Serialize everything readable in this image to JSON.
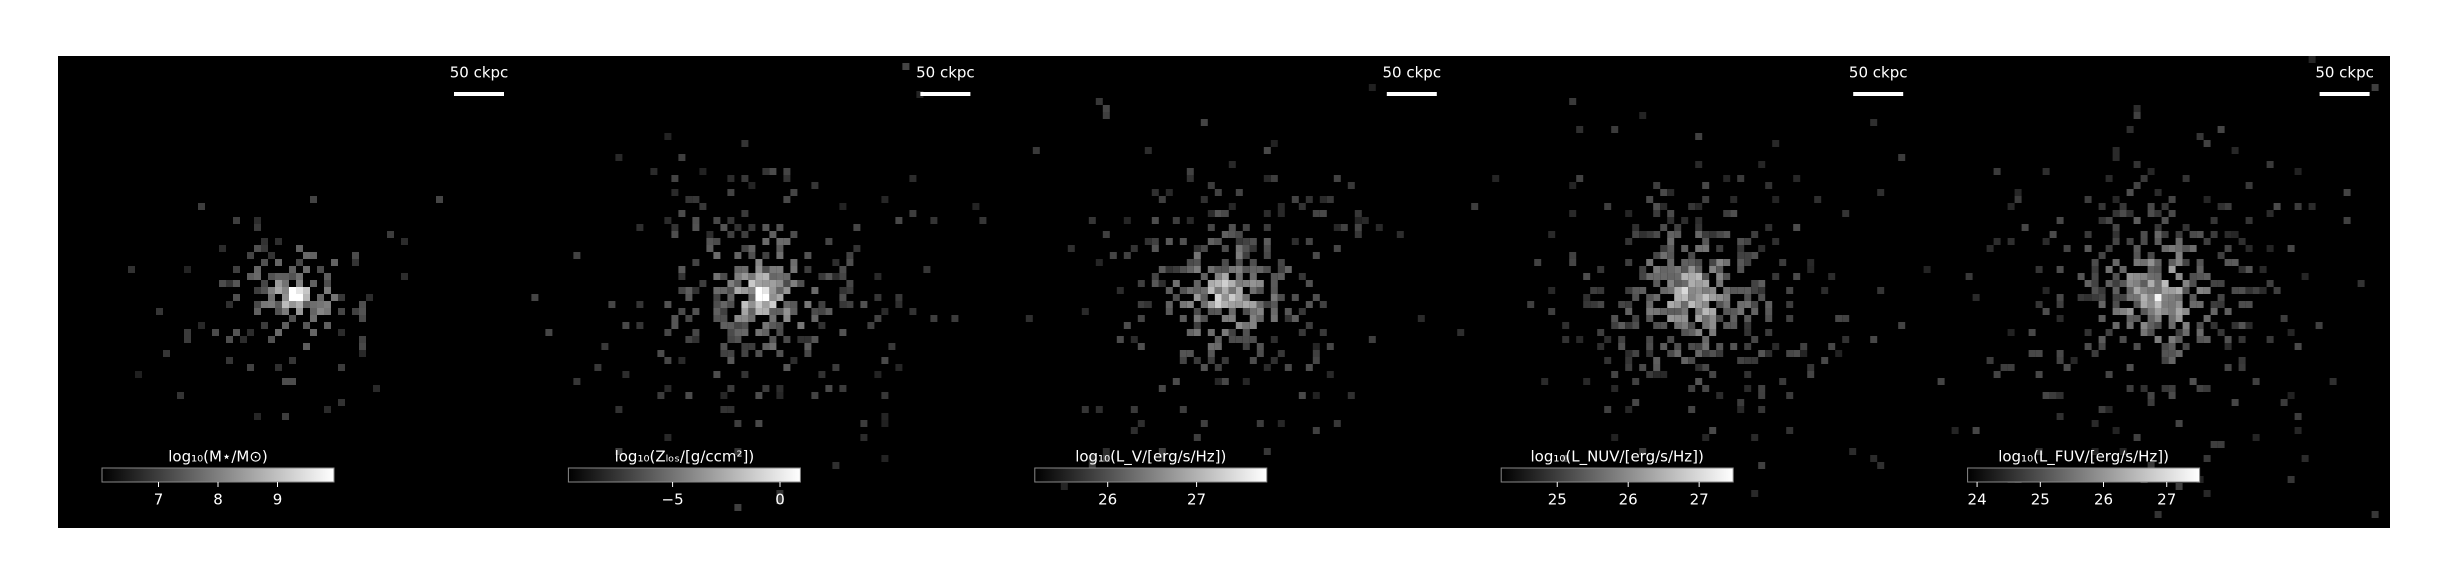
{
  "chart_data": [
    {
      "type": "image",
      "scalebar": "50 ckpc",
      "colorbar_label": "log₁₀(M⋆/M⊙)",
      "clim": [
        6.05,
        9.95
      ],
      "cticks": [
        7,
        8,
        9
      ],
      "cmap": "gray"
    },
    {
      "type": "image",
      "scalebar": "50 ckpc",
      "colorbar_label": "log₁₀(Zₗₒₛ/[g/ccm²])",
      "clim": [
        -9.85,
        0.95
      ],
      "cticks": [
        {
          "value": -5,
          "label": "−5"
        },
        0
      ],
      "cmap": "gray"
    },
    {
      "type": "image",
      "scalebar": "50 ckpc",
      "colorbar_label": "log₁₀(L_V/[erg/s/Hz])",
      "clim": [
        25.18,
        27.79
      ],
      "cticks": [
        26,
        27
      ],
      "cmap": "gray"
    },
    {
      "type": "image",
      "scalebar": "50 ckpc",
      "colorbar_label": "log₁₀(L_NUV/[erg/s/Hz])",
      "clim": [
        24.21,
        27.48
      ],
      "cticks": [
        25,
        26,
        27
      ],
      "cmap": "gray"
    },
    {
      "type": "image",
      "scalebar": "50 ckpc",
      "colorbar_label": "log₁₀(L_FUV/[erg/s/Hz])",
      "clim": [
        23.85,
        27.52
      ],
      "cticks": [
        24,
        25,
        26,
        27
      ],
      "cmap": "gray"
    }
  ]
}
